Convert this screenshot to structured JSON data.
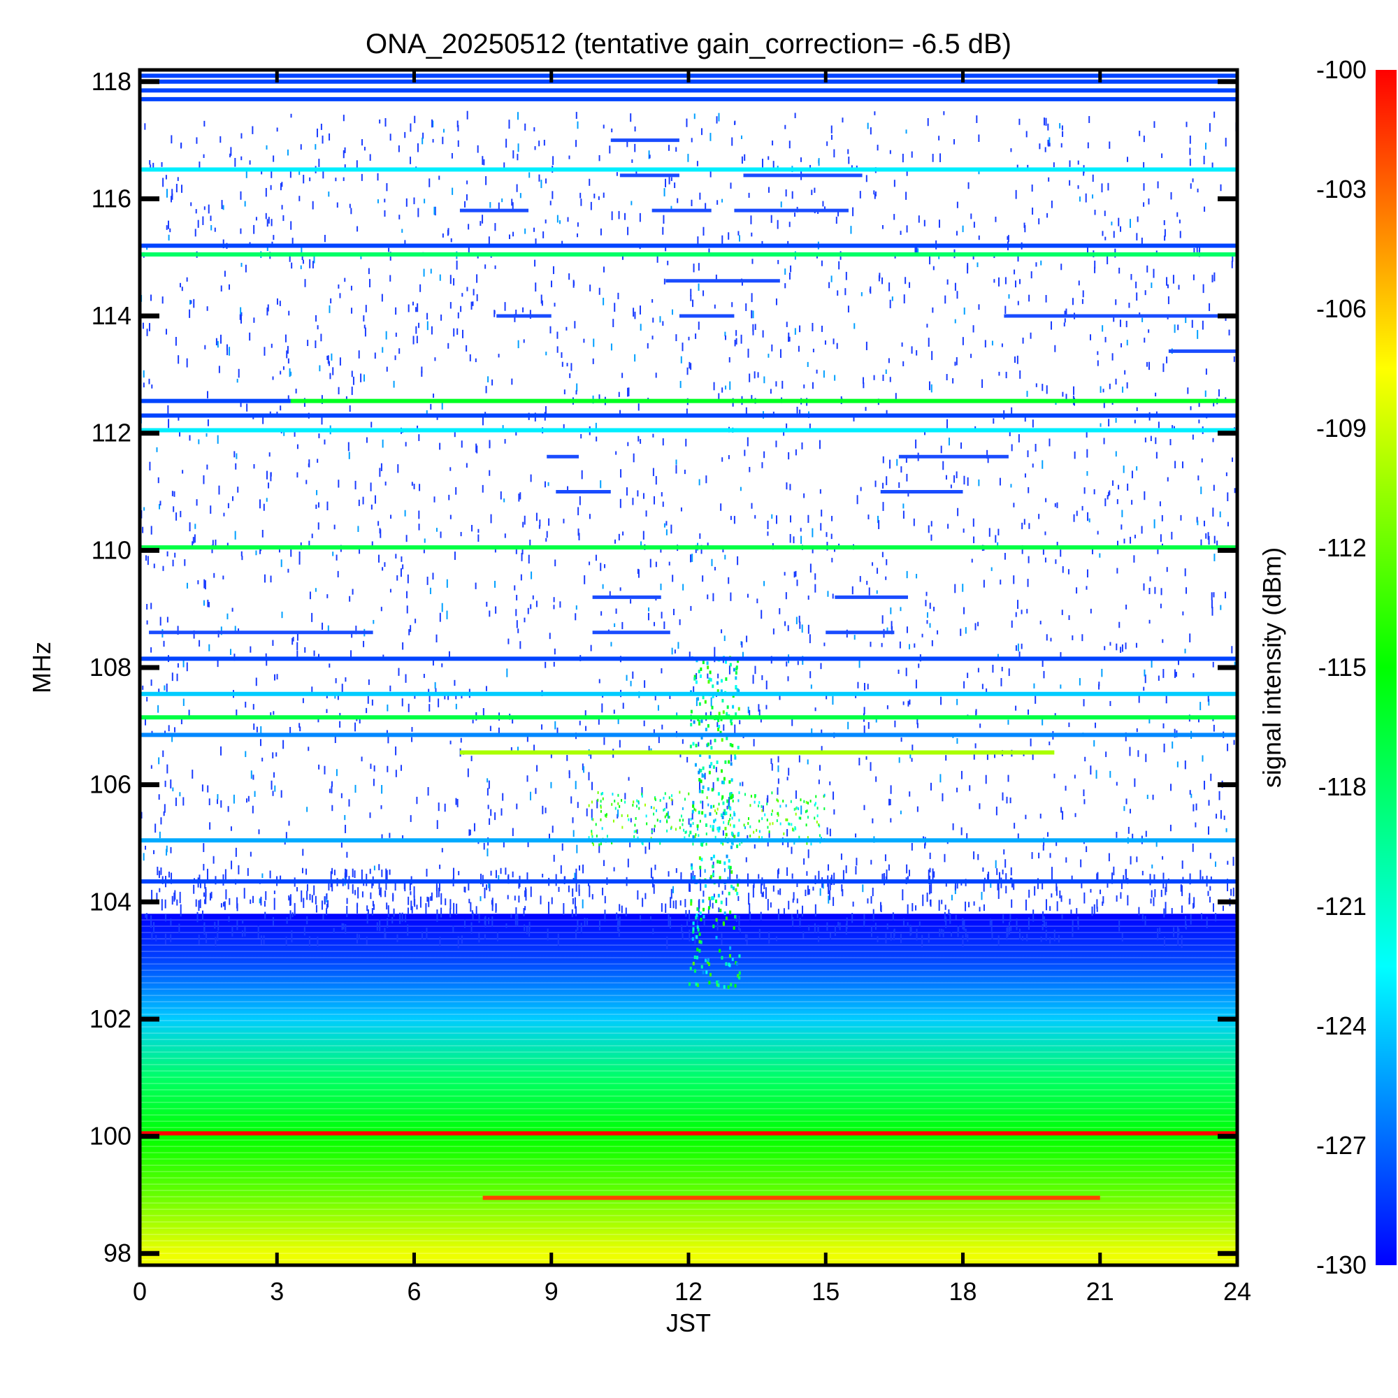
{
  "chart_data": {
    "type": "heatmap",
    "title": "ONA_20250512 (tentative gain_correction= -6.5 dB)",
    "xlabel": "JST",
    "ylabel": "MHz",
    "colorbar_label": "signal intensity (dBm)",
    "xlim": [
      0,
      24
    ],
    "ylim": [
      97.8,
      118.2
    ],
    "x_ticks": [
      "0",
      "3",
      "6",
      "9",
      "12",
      "15",
      "18",
      "21",
      "24"
    ],
    "y_ticks": [
      "98",
      "100",
      "102",
      "104",
      "106",
      "108",
      "110",
      "112",
      "114",
      "116",
      "118"
    ],
    "color_range": [
      -130,
      -100
    ],
    "colorbar_ticks": [
      "-100",
      "-103",
      "-106",
      "-109",
      "-112",
      "-115",
      "-118",
      "-121",
      "-124",
      "-127",
      "-130"
    ],
    "colormap": [
      "#0000ff",
      "#0080ff",
      "#00ffff",
      "#00ff80",
      "#00ff00",
      "#80ff00",
      "#ffff00",
      "#ff8000",
      "#ff0000"
    ],
    "horizontal_lines_MHz": [
      {
        "freq": 117.7,
        "level": -128,
        "x": [
          0,
          24
        ]
      },
      {
        "freq": 117.85,
        "level": -128,
        "x": [
          0,
          24
        ]
      },
      {
        "freq": 118.0,
        "level": -128,
        "x": [
          0,
          24
        ]
      },
      {
        "freq": 118.1,
        "level": -128,
        "x": [
          0,
          24
        ]
      },
      {
        "freq": 116.5,
        "level": -123,
        "x": [
          0,
          24
        ]
      },
      {
        "freq": 115.05,
        "level": -118,
        "x": [
          0,
          24
        ]
      },
      {
        "freq": 115.2,
        "level": -128,
        "x": [
          0,
          24
        ]
      },
      {
        "freq": 112.55,
        "level": -116,
        "x": [
          3.3,
          24
        ]
      },
      {
        "freq": 112.55,
        "level": -128,
        "x": [
          0,
          3.3
        ]
      },
      {
        "freq": 112.3,
        "level": -128,
        "x": [
          0,
          24
        ]
      },
      {
        "freq": 112.05,
        "level": -123,
        "x": [
          0,
          24
        ]
      },
      {
        "freq": 110.05,
        "level": -117,
        "x": [
          0,
          24
        ]
      },
      {
        "freq": 108.15,
        "level": -128,
        "x": [
          0,
          24
        ]
      },
      {
        "freq": 107.55,
        "level": -124,
        "x": [
          0,
          24
        ]
      },
      {
        "freq": 107.15,
        "level": -117,
        "x": [
          0,
          24
        ]
      },
      {
        "freq": 106.85,
        "level": -126,
        "x": [
          0,
          24
        ]
      },
      {
        "freq": 106.55,
        "level": -110,
        "x": [
          7,
          20
        ]
      },
      {
        "freq": 105.05,
        "level": -125,
        "x": [
          0,
          24
        ]
      },
      {
        "freq": 104.35,
        "level": -128,
        "x": [
          0,
          24
        ]
      },
      {
        "freq": 100.05,
        "level": -100,
        "x": [
          0,
          24
        ]
      },
      {
        "freq": 98.95,
        "level": -102,
        "x": [
          7.5,
          21
        ]
      }
    ],
    "segments_MHz": [
      {
        "freq": 117.0,
        "x": [
          10.3,
          11.8
        ]
      },
      {
        "freq": 116.4,
        "x": [
          10.5,
          11.8
        ]
      },
      {
        "freq": 116.4,
        "x": [
          13.2,
          15.8
        ]
      },
      {
        "freq": 115.8,
        "x": [
          7.0,
          8.5
        ]
      },
      {
        "freq": 115.8,
        "x": [
          11.2,
          12.5
        ]
      },
      {
        "freq": 115.8,
        "x": [
          13.0,
          15.5
        ]
      },
      {
        "freq": 114.6,
        "x": [
          11.5,
          14.0
        ]
      },
      {
        "freq": 114.0,
        "x": [
          7.8,
          9.0
        ]
      },
      {
        "freq": 114.0,
        "x": [
          11.8,
          13.0
        ]
      },
      {
        "freq": 114.0,
        "x": [
          18.9,
          24.0
        ]
      },
      {
        "freq": 113.4,
        "x": [
          22.5,
          24.0
        ]
      },
      {
        "freq": 111.6,
        "x": [
          8.9,
          9.6
        ]
      },
      {
        "freq": 111.6,
        "x": [
          16.6,
          19.0
        ]
      },
      {
        "freq": 111.0,
        "x": [
          9.1,
          10.3
        ]
      },
      {
        "freq": 111.0,
        "x": [
          16.2,
          18.0
        ]
      },
      {
        "freq": 109.2,
        "x": [
          9.9,
          11.4
        ]
      },
      {
        "freq": 109.2,
        "x": [
          15.2,
          16.8
        ]
      },
      {
        "freq": 108.6,
        "x": [
          0.2,
          5.1
        ]
      },
      {
        "freq": 108.6,
        "x": [
          9.9,
          11.6
        ]
      },
      {
        "freq": 108.6,
        "x": [
          15.0,
          16.5
        ]
      }
    ],
    "background_gradient": [
      {
        "freq": 98.0,
        "level": -108
      },
      {
        "freq": 99.0,
        "level": -112
      },
      {
        "freq": 100.0,
        "level": -115
      },
      {
        "freq": 101.0,
        "level": -118
      },
      {
        "freq": 102.0,
        "level": -124
      },
      {
        "freq": 103.0,
        "level": -128
      },
      {
        "freq": 103.8,
        "level": -130
      }
    ]
  }
}
